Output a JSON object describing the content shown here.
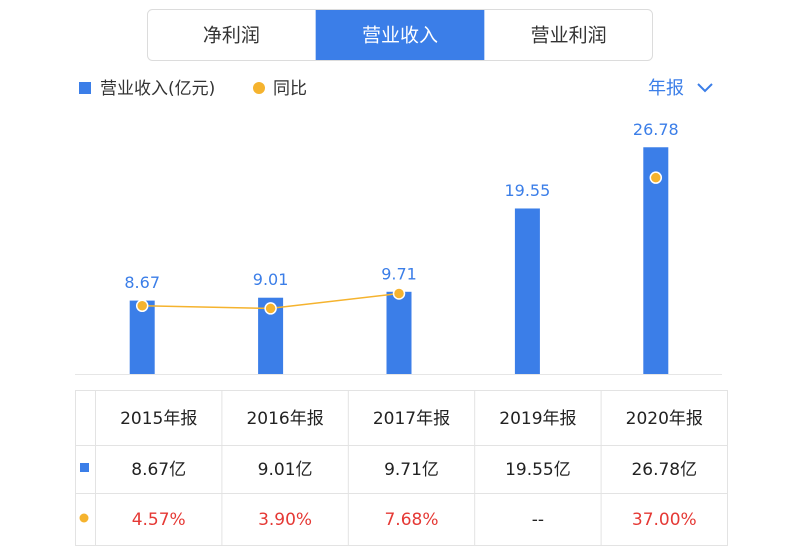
{
  "tabs": {
    "items": [
      "净利润",
      "营业收入",
      "营业利润"
    ],
    "selected": 1
  },
  "period_selector": "年报",
  "chart_data": {
    "type": "bar",
    "categories": [
      "2015年报",
      "2016年报",
      "2017年报",
      "2019年报",
      "2020年报"
    ],
    "series": [
      {
        "name": "营业收入(亿元)",
        "type": "bar",
        "color": "#3b7ee8",
        "values": [
          8.67,
          9.01,
          9.71,
          19.55,
          26.78
        ]
      },
      {
        "name": "同比",
        "type": "line",
        "axis": "y2",
        "color": "#f5b32e",
        "values": [
          4.57,
          3.9,
          7.68,
          null,
          37.0
        ]
      }
    ],
    "ylim": [
      0,
      30
    ],
    "y2lim": [
      -12.7,
      51.6
    ]
  },
  "table": {
    "rows": [
      [
        "8.67亿",
        "9.01亿",
        "9.71亿",
        "19.55亿",
        "26.78亿"
      ],
      [
        "4.57%",
        "3.90%",
        "7.68%",
        "--",
        "37.00%"
      ]
    ]
  }
}
